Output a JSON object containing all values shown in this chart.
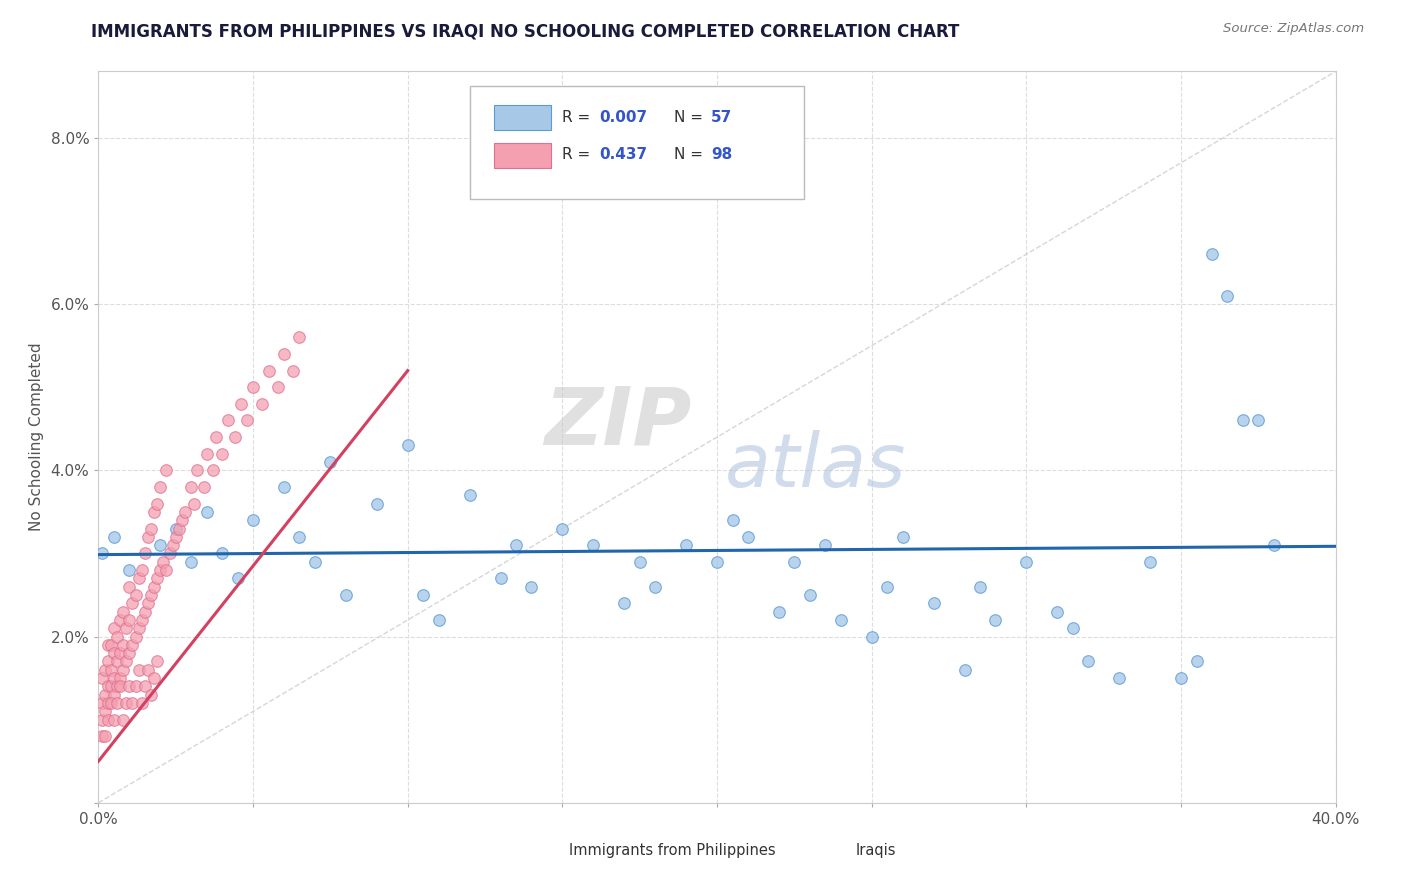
{
  "title": "IMMIGRANTS FROM PHILIPPINES VS IRAQI NO SCHOOLING COMPLETED CORRELATION CHART",
  "source": "Source: ZipAtlas.com",
  "ylabel": "No Schooling Completed",
  "xlim": [
    0.0,
    0.4
  ],
  "ylim": [
    0.0,
    0.088
  ],
  "philippines_color": "#a8c8e8",
  "iraqis_color": "#f4a0b0",
  "philippines_edge": "#5b9bd5",
  "iraqis_edge": "#e07090",
  "regression_philippines_color": "#2166ac",
  "regression_iraqis_color": "#d44060",
  "legend_R_philippines": "0.007",
  "legend_N_philippines": "57",
  "legend_R_iraqis": "0.437",
  "legend_N_iraqis": "98",
  "watermark_zip": "ZIP",
  "watermark_atlas": "atlas",
  "phil_x": [
    0.001,
    0.005,
    0.01,
    0.02,
    0.025,
    0.03,
    0.035,
    0.04,
    0.045,
    0.05,
    0.06,
    0.065,
    0.07,
    0.075,
    0.08,
    0.09,
    0.1,
    0.105,
    0.11,
    0.12,
    0.13,
    0.135,
    0.14,
    0.15,
    0.16,
    0.17,
    0.175,
    0.18,
    0.19,
    0.2,
    0.205,
    0.21,
    0.22,
    0.225,
    0.23,
    0.235,
    0.24,
    0.25,
    0.255,
    0.26,
    0.27,
    0.28,
    0.285,
    0.29,
    0.3,
    0.31,
    0.315,
    0.32,
    0.33,
    0.34,
    0.35,
    0.355,
    0.36,
    0.365,
    0.37,
    0.375,
    0.38
  ],
  "phil_y": [
    0.03,
    0.032,
    0.028,
    0.031,
    0.033,
    0.029,
    0.035,
    0.03,
    0.027,
    0.034,
    0.038,
    0.032,
    0.029,
    0.041,
    0.025,
    0.036,
    0.043,
    0.025,
    0.022,
    0.037,
    0.027,
    0.031,
    0.026,
    0.033,
    0.031,
    0.024,
    0.029,
    0.026,
    0.031,
    0.029,
    0.034,
    0.032,
    0.023,
    0.029,
    0.025,
    0.031,
    0.022,
    0.02,
    0.026,
    0.032,
    0.024,
    0.016,
    0.026,
    0.022,
    0.029,
    0.023,
    0.021,
    0.017,
    0.015,
    0.029,
    0.015,
    0.017,
    0.066,
    0.061,
    0.046,
    0.046,
    0.031
  ],
  "iraq_x": [
    0.001,
    0.001,
    0.001,
    0.001,
    0.002,
    0.002,
    0.002,
    0.003,
    0.003,
    0.003,
    0.003,
    0.004,
    0.004,
    0.004,
    0.005,
    0.005,
    0.005,
    0.005,
    0.006,
    0.006,
    0.006,
    0.007,
    0.007,
    0.007,
    0.008,
    0.008,
    0.008,
    0.009,
    0.009,
    0.01,
    0.01,
    0.01,
    0.011,
    0.011,
    0.012,
    0.012,
    0.013,
    0.013,
    0.014,
    0.014,
    0.015,
    0.015,
    0.016,
    0.016,
    0.017,
    0.017,
    0.018,
    0.018,
    0.019,
    0.019,
    0.02,
    0.02,
    0.021,
    0.022,
    0.022,
    0.023,
    0.024,
    0.025,
    0.026,
    0.027,
    0.028,
    0.03,
    0.031,
    0.032,
    0.034,
    0.035,
    0.037,
    0.038,
    0.04,
    0.042,
    0.044,
    0.046,
    0.048,
    0.05,
    0.053,
    0.055,
    0.058,
    0.06,
    0.063,
    0.065,
    0.002,
    0.003,
    0.004,
    0.005,
    0.006,
    0.007,
    0.008,
    0.009,
    0.01,
    0.011,
    0.012,
    0.013,
    0.014,
    0.015,
    0.016,
    0.017,
    0.018,
    0.019
  ],
  "iraq_y": [
    0.008,
    0.01,
    0.012,
    0.015,
    0.011,
    0.013,
    0.016,
    0.012,
    0.014,
    0.017,
    0.019,
    0.014,
    0.016,
    0.019,
    0.013,
    0.015,
    0.018,
    0.021,
    0.014,
    0.017,
    0.02,
    0.015,
    0.018,
    0.022,
    0.016,
    0.019,
    0.023,
    0.017,
    0.021,
    0.018,
    0.022,
    0.026,
    0.019,
    0.024,
    0.02,
    0.025,
    0.021,
    0.027,
    0.022,
    0.028,
    0.023,
    0.03,
    0.024,
    0.032,
    0.025,
    0.033,
    0.026,
    0.035,
    0.027,
    0.036,
    0.028,
    0.038,
    0.029,
    0.028,
    0.04,
    0.03,
    0.031,
    0.032,
    0.033,
    0.034,
    0.035,
    0.038,
    0.036,
    0.04,
    0.038,
    0.042,
    0.04,
    0.044,
    0.042,
    0.046,
    0.044,
    0.048,
    0.046,
    0.05,
    0.048,
    0.052,
    0.05,
    0.054,
    0.052,
    0.056,
    0.008,
    0.01,
    0.012,
    0.01,
    0.012,
    0.014,
    0.01,
    0.012,
    0.014,
    0.012,
    0.014,
    0.016,
    0.012,
    0.014,
    0.016,
    0.013,
    0.015,
    0.017
  ]
}
